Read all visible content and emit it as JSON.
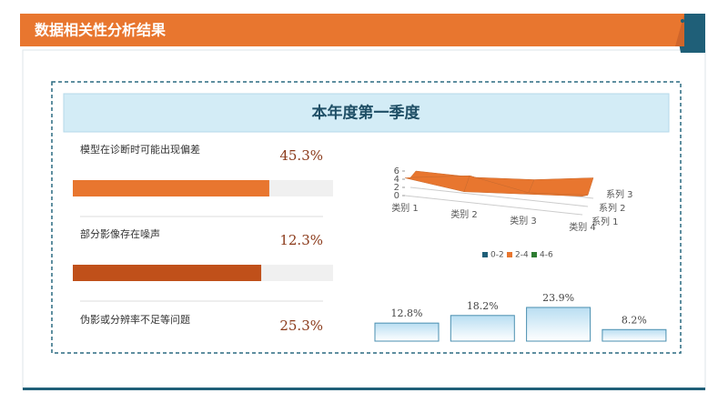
{
  "header": {
    "title": "数据相关性分析结果"
  },
  "section": {
    "title": "本年度第一季度"
  },
  "items": [
    {
      "label": "模型在诊断时可能出现偏差",
      "value": "45.3%",
      "bar_fill": 75.5,
      "bar_color": "#e8762f"
    },
    {
      "label": "部分影像存在噪声",
      "value": "12.3%",
      "bar_fill": 72.4,
      "bar_color": "#c0501a"
    },
    {
      "label": "伪影或分辨率不足等问题",
      "value": "25.3%"
    }
  ],
  "chart_data": [
    {
      "type": "surface",
      "categories": [
        "类别 1",
        "类别 2",
        "类别 3",
        "类别 4"
      ],
      "series": [
        {
          "name": "系列 1",
          "values": [
            4.3,
            2.5,
            3.5,
            4.5
          ]
        },
        {
          "name": "系列 2",
          "values": [
            2.4,
            4.4,
            1.8,
            2.8
          ]
        },
        {
          "name": "系列 3",
          "values": [
            2,
            2,
            3,
            5
          ]
        }
      ],
      "zlim": [
        0,
        6
      ],
      "zticks": [
        0,
        2,
        4,
        6
      ],
      "bands": [
        {
          "name": "0-2",
          "range": [
            0,
            2
          ],
          "color": "#1f5f78"
        },
        {
          "name": "2-4",
          "range": [
            2,
            4
          ],
          "color": "#e8762f"
        },
        {
          "name": "4-6",
          "range": [
            4,
            6
          ],
          "color": "#2e7d32"
        }
      ]
    },
    {
      "type": "bar",
      "values": [
        12.8,
        18.2,
        23.9,
        8.2
      ],
      "value_labels": [
        "12.8%",
        "18.2%",
        "23.9%",
        "8.2%"
      ],
      "color": "#d6ecf7"
    }
  ]
}
